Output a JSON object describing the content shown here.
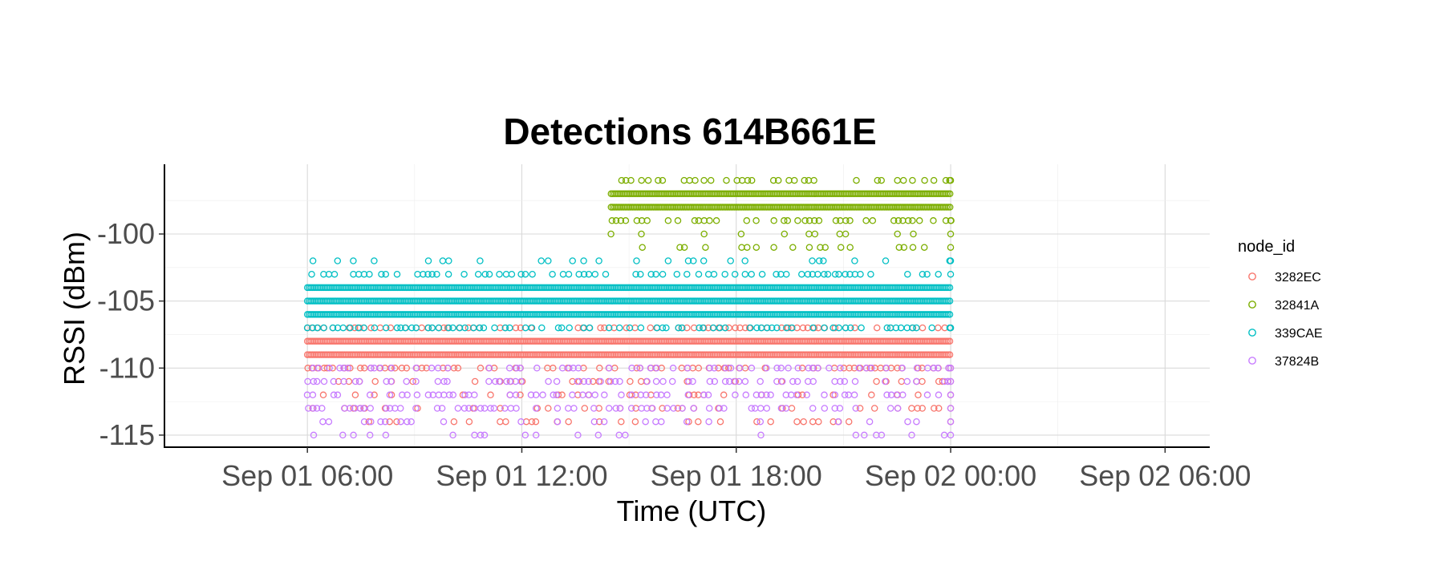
{
  "chart_data": {
    "type": "scatter",
    "title": "Detections 614B661E",
    "xlabel": "Time (UTC)",
    "ylabel": "RSSI (dBm)",
    "x_ticks": [
      "Sep 01 06:00",
      "Sep 01 12:00",
      "Sep 01 18:00",
      "Sep 02 00:00",
      "Sep 02 06:00"
    ],
    "x_range": [
      "Sep 01 02:00",
      "Sep 02 07:15"
    ],
    "y_ticks": [
      -100,
      -105,
      -110,
      -115
    ],
    "y_range": [
      -115.9,
      -94.8
    ],
    "grid": true,
    "legend": {
      "title": "node_id",
      "position": "right"
    },
    "series": [
      {
        "name": "3282EC",
        "color": "#F8766D",
        "x_span": [
          "Sep 01 06:00",
          "Sep 02 00:00"
        ],
        "dense_levels": [
          -108,
          -109
        ],
        "sparse_levels": [
          -107,
          -110,
          -111,
          -112,
          -113,
          -114
        ]
      },
      {
        "name": "32841A",
        "color": "#7CAE00",
        "x_span": [
          "Sep 01 14:30",
          "Sep 02 00:00"
        ],
        "dense_levels": [
          -97,
          -98
        ],
        "sparse_levels": [
          -96,
          -99,
          -100,
          -101
        ]
      },
      {
        "name": "339CAE",
        "color": "#00BFC4",
        "x_span": [
          "Sep 01 06:00",
          "Sep 02 00:00"
        ],
        "dense_levels": [
          -104,
          -105,
          -106
        ],
        "sparse_levels": [
          -102,
          -103,
          -107
        ]
      },
      {
        "name": "37824B",
        "color": "#C77CFF",
        "x_span": [
          "Sep 01 06:00",
          "Sep 02 00:00"
        ],
        "dense_levels": [],
        "sparse_levels": [
          -110,
          -111,
          -112,
          -113,
          -114,
          -115
        ]
      }
    ]
  }
}
